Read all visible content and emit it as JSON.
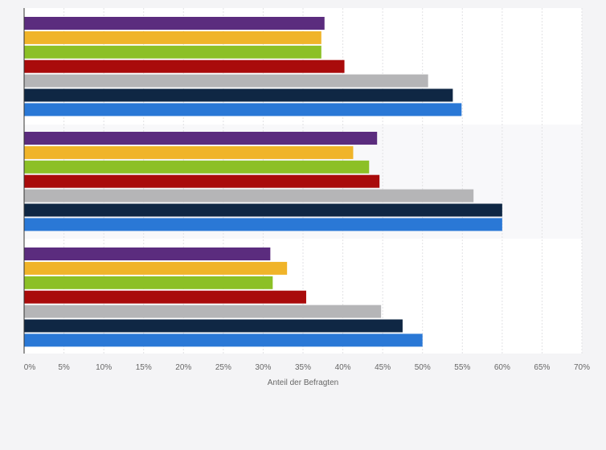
{
  "chart_data": {
    "type": "bar",
    "orientation": "horizontal",
    "categories": [
      "",
      "",
      ""
    ],
    "series": [
      {
        "color": "#5b2c7e",
        "values": [
          37.7,
          44.3,
          30.9
        ]
      },
      {
        "color": "#f0b429",
        "values": [
          37.3,
          41.3,
          33.0
        ]
      },
      {
        "color": "#8cc026",
        "values": [
          37.3,
          43.3,
          31.2
        ]
      },
      {
        "color": "#a90b0b",
        "values": [
          40.2,
          44.6,
          35.4
        ]
      },
      {
        "color": "#b5b5b7",
        "values": [
          50.7,
          56.4,
          44.8
        ]
      },
      {
        "color": "#0f2744",
        "values": [
          53.8,
          60.0,
          47.5
        ]
      },
      {
        "color": "#2a78d6",
        "values": [
          54.9,
          60.0,
          50.0
        ]
      }
    ],
    "xlim": [
      0,
      70
    ],
    "xticks": [
      "0%",
      "5%",
      "10%",
      "15%",
      "20%",
      "25%",
      "30%",
      "35%",
      "40%",
      "45%",
      "50%",
      "55%",
      "60%",
      "65%",
      "70%"
    ],
    "xlabel": "Anteil der Befragten",
    "grid": true,
    "legend": "none"
  }
}
